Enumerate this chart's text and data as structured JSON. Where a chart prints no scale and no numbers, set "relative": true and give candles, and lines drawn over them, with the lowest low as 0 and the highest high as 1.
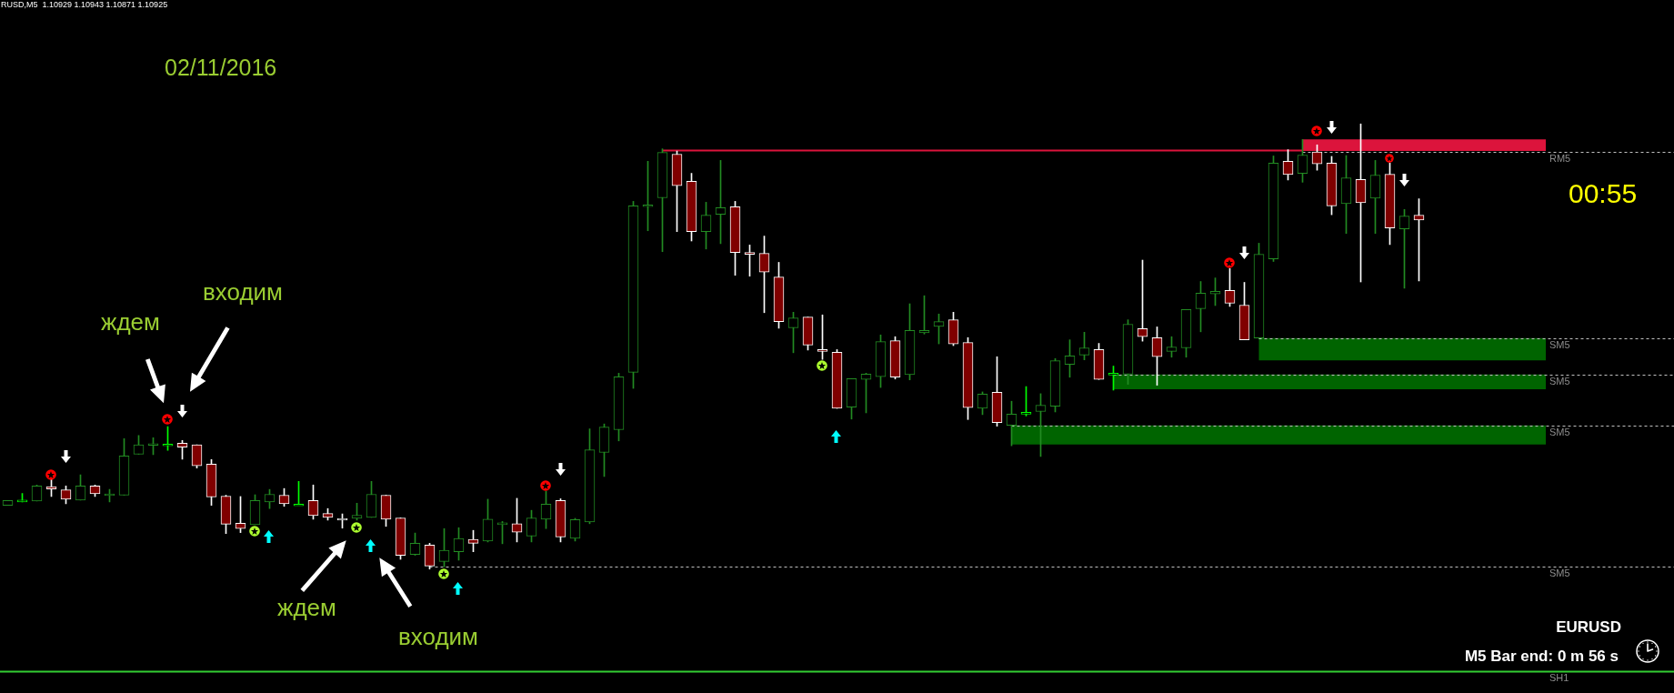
{
  "chart_data": {
    "type": "candlestick",
    "title": "RUSD,M5  1.10929 1.10943 1.10871 1.10925",
    "relative": true,
    "tick_labels": false,
    "categories": [
      null,
      null,
      null,
      null,
      null,
      null,
      null,
      null,
      null,
      null,
      null,
      null,
      null,
      null,
      null,
      null,
      null,
      null,
      null,
      null,
      null,
      null,
      null,
      null,
      null,
      null,
      null,
      null,
      null,
      null,
      null,
      null,
      null,
      null,
      null,
      null,
      null,
      null,
      null,
      null,
      null,
      null,
      null,
      null,
      null,
      null,
      null,
      null,
      null,
      null,
      null,
      null,
      null,
      null,
      null,
      null,
      null,
      null,
      null,
      null,
      null,
      null,
      null,
      null,
      null,
      null,
      null,
      null,
      null,
      null,
      null,
      null,
      null,
      null,
      null,
      null,
      null,
      null,
      null,
      null,
      null,
      null,
      null,
      null,
      null,
      null,
      null,
      null,
      null,
      null,
      null,
      null,
      null,
      null,
      null,
      null,
      null,
      null
    ],
    "ohlc": [
      [
        0.143,
        0.154,
        0.143,
        0.154
      ],
      [
        0.155,
        0.17,
        0.151,
        0.155
      ],
      [
        0.153,
        0.189,
        0.153,
        0.187
      ],
      [
        0.185,
        0.202,
        0.163,
        0.18
      ],
      [
        0.178,
        0.187,
        0.147,
        0.157
      ],
      [
        0.155,
        0.212,
        0.155,
        0.187
      ],
      [
        0.187,
        0.189,
        0.163,
        0.169
      ],
      [
        0.169,
        0.179,
        0.151,
        0.169
      ],
      [
        0.166,
        0.293,
        0.166,
        0.254
      ],
      [
        0.258,
        0.3,
        0.258,
        0.279
      ],
      [
        0.282,
        0.295,
        0.257,
        0.282
      ],
      [
        0.281,
        0.32,
        0.267,
        0.281
      ],
      [
        0.283,
        0.289,
        0.247,
        0.274
      ],
      [
        0.279,
        0.279,
        0.227,
        0.232
      ],
      [
        0.236,
        0.246,
        0.143,
        0.162
      ],
      [
        0.164,
        0.166,
        0.08,
        0.101
      ],
      [
        0.103,
        0.163,
        0.082,
        0.091
      ],
      [
        0.1,
        0.167,
        0.1,
        0.154
      ],
      [
        0.151,
        0.179,
        0.136,
        0.168
      ],
      [
        0.166,
        0.181,
        0.141,
        0.147
      ],
      [
        0.146,
        0.197,
        0.146,
        0.146
      ],
      [
        0.154,
        0.189,
        0.112,
        0.12
      ],
      [
        0.125,
        0.136,
        0.11,
        0.116
      ],
      [
        0.114,
        0.124,
        0.092,
        0.114
      ],
      [
        0.114,
        0.148,
        0.11,
        0.121
      ],
      [
        0.116,
        0.197,
        0.116,
        0.168
      ],
      [
        0.166,
        0.166,
        0.096,
        0.112
      ],
      [
        0.115,
        0.115,
        0.022,
        0.031
      ],
      [
        0.033,
        0.081,
        0.031,
        0.058
      ],
      [
        0.054,
        0.058,
        0,
        0.007
      ],
      [
        0.017,
        0.091,
        0.005,
        0.042
      ],
      [
        0.039,
        0.093,
        0.02,
        0.069
      ],
      [
        0.067,
        0.087,
        0.039,
        0.058
      ],
      [
        0.063,
        0.157,
        0.061,
        0.112
      ],
      [
        0.104,
        0.107,
        0.057,
        0.104
      ],
      [
        0.102,
        0.159,
        0.061,
        0.083
      ],
      [
        0.074,
        0.132,
        0.061,
        0.115
      ],
      [
        0.112,
        0.175,
        0.091,
        0.146
      ],
      [
        0.154,
        0.158,
        0.061,
        0.072
      ],
      [
        0.069,
        0.114,
        0.063,
        0.111
      ],
      [
        0.106,
        0.315,
        0.102,
        0.268
      ],
      [
        0.262,
        0.326,
        0.208,
        0.319
      ],
      [
        0.313,
        0.44,
        0.288,
        0.432
      ],
      [
        0.442,
        0.826,
        0.406,
        0.816
      ],
      [
        0.814,
        0.916,
        0.76,
        0.818
      ],
      [
        0.834,
        0.944,
        0.713,
        0.936
      ],
      [
        0.932,
        0.939,
        0.758,
        0.861
      ],
      [
        0.871,
        0.889,
        0.737,
        0.758
      ],
      [
        0.758,
        0.824,
        0.719,
        0.795
      ],
      [
        0.797,
        0.918,
        0.731,
        0.812
      ],
      [
        0.814,
        0.826,
        0.66,
        0.711
      ],
      [
        0.711,
        0.728,
        0.658,
        0.707
      ],
      [
        0.709,
        0.748,
        0.576,
        0.667
      ],
      [
        0.656,
        0.689,
        0.541,
        0.556
      ],
      [
        0.542,
        0.577,
        0.486,
        0.564
      ],
      [
        0.566,
        0.566,
        0.492,
        0.503
      ],
      [
        0.493,
        0.571,
        0.471,
        0.489
      ],
      [
        0.487,
        0.493,
        0.361,
        0.361
      ],
      [
        0.364,
        0.428,
        0.337,
        0.428
      ],
      [
        0.426,
        0.44,
        0.351,
        0.438
      ],
      [
        0.432,
        0.526,
        0.408,
        0.511
      ],
      [
        0.513,
        0.522,
        0.427,
        0.431
      ],
      [
        0.437,
        0.596,
        0.425,
        0.536
      ],
      [
        0.531,
        0.614,
        0.528,
        0.536
      ],
      [
        0.545,
        0.573,
        0.506,
        0.556
      ],
      [
        0.56,
        0.577,
        0.502,
        0.506
      ],
      [
        0.509,
        0.52,
        0.336,
        0.363
      ],
      [
        0.361,
        0.398,
        0.347,
        0.393
      ],
      [
        0.397,
        0.477,
        0.321,
        0.329
      ],
      [
        0.323,
        0.377,
        0.277,
        0.348
      ],
      [
        0.352,
        0.41,
        0.344,
        0.352
      ],
      [
        0.354,
        0.394,
        0.253,
        0.368
      ],
      [
        0.366,
        0.473,
        0.353,
        0.468
      ],
      [
        0.46,
        0.515,
        0.431,
        0.479
      ],
      [
        0.481,
        0.532,
        0.47,
        0.497
      ],
      [
        0.493,
        0.507,
        0.426,
        0.426
      ],
      [
        0.44,
        0.456,
        0.402,
        0.44
      ],
      [
        0.438,
        0.56,
        0.415,
        0.55
      ],
      [
        0.54,
        0.694,
        0.512,
        0.522
      ],
      [
        0.52,
        0.544,
        0.413,
        0.477
      ],
      [
        0.489,
        0.522,
        0.476,
        0.499
      ],
      [
        0.497,
        0.583,
        0.476,
        0.583
      ],
      [
        0.585,
        0.646,
        0.533,
        0.62
      ],
      [
        0.618,
        0.654,
        0.592,
        0.624
      ],
      [
        0.626,
        0.675,
        0.59,
        0.597
      ],
      [
        0.593,
        0.644,
        0.515,
        0.515
      ],
      [
        0.519,
        0.732,
        0.519,
        0.707
      ],
      [
        0.697,
        0.928,
        0.691,
        0.912
      ],
      [
        0.916,
        0.942,
        0.874,
        0.886
      ],
      [
        0.889,
        0.965,
        0.869,
        0.93
      ],
      [
        0.937,
        0.953,
        0.896,
        0.91
      ],
      [
        0.912,
        0.927,
        0.796,
        0.816
      ],
      [
        0.821,
        0.929,
        0.754,
        0.879
      ],
      [
        0.875,
        1,
        0.645,
        0.823
      ],
      [
        0.833,
        0.918,
        0.754,
        0.885
      ],
      [
        0.887,
        0.912,
        0.729,
        0.766
      ],
      [
        0.764,
        0.808,
        0.631,
        0.793
      ],
      [
        0.795,
        0.832,
        0.647,
        0.784
      ]
    ],
    "colors": [
      "#228b22",
      "#00ff00",
      "#228b22",
      "#ffffff",
      "#ffffff",
      "#228b22",
      "#ffffff",
      "#228b22",
      "#228b22",
      "#228b22",
      "#228b22",
      "#00ff00",
      "#ffffff",
      "#ffffff",
      "#ffffff",
      "#ffffff",
      "#ffffff",
      "#228b22",
      "#228b22",
      "#ffffff",
      "#00ff00",
      "#ffffff",
      "#ffffff",
      "#ffffff",
      "#228b22",
      "#228b22",
      "#ffffff",
      "#ffffff",
      "#228b22",
      "#ffffff",
      "#228b22",
      "#228b22",
      "#ffffff",
      "#228b22",
      "#228b22",
      "#ffffff",
      "#228b22",
      "#228b22",
      "#ffffff",
      "#228b22",
      "#228b22",
      "#228b22",
      "#228b22",
      "#228b22",
      "#228b22",
      "#228b22",
      "#ffffff",
      "#ffffff",
      "#228b22",
      "#228b22",
      "#ffffff",
      "#ffffff",
      "#ffffff",
      "#ffffff",
      "#228b22",
      "#ffffff",
      "#ffffff",
      "#ffffff",
      "#228b22",
      "#228b22",
      "#228b22",
      "#ffffff",
      "#228b22",
      "#228b22",
      "#228b22",
      "#ffffff",
      "#ffffff",
      "#228b22",
      "#ffffff",
      "#228b22",
      "#00ff00",
      "#228b22",
      "#228b22",
      "#228b22",
      "#228b22",
      "#ffffff",
      "#00ff00",
      "#228b22",
      "#ffffff",
      "#ffffff",
      "#228b22",
      "#228b22",
      "#228b22",
      "#228b22",
      "#ffffff",
      "#ffffff",
      "#228b22",
      "#228b22",
      "#ffffff",
      "#228b22",
      "#ffffff",
      "#ffffff",
      "#228b22",
      "#ffffff",
      "#228b22",
      "#ffffff",
      "#228b22",
      "#ffffff"
    ],
    "bands": [
      {
        "axis": "y",
        "from": 0.939,
        "to": 0.965,
        "color": "#dc143c"
      },
      {
        "axis": "y",
        "from": 0.469,
        "to": 0.519,
        "color": "#006400"
      },
      {
        "axis": "y",
        "from": 0.404,
        "to": 0.437,
        "color": "#006400"
      },
      {
        "axis": "y",
        "from": 0.28,
        "to": 0.323,
        "color": "#006400"
      }
    ],
    "ref_lines": [
      {
        "axis": "y",
        "value": 0.942,
        "color": "#dc143c",
        "line_style": "solid"
      },
      {
        "axis": "y",
        "value": 0.938,
        "label": "RM5",
        "color": "#c0c0c0",
        "line_style": "dashed"
      },
      {
        "axis": "y",
        "value": 0.519,
        "label": "SM5",
        "color": "#c0c0c0",
        "line_style": "dashed"
      },
      {
        "axis": "y",
        "value": 0.437,
        "label": "SM5",
        "color": "#c0c0c0",
        "line_style": "dashed"
      },
      {
        "axis": "y",
        "value": 0.323,
        "label": "SM5",
        "color": "#c0c0c0",
        "line_style": "dashed"
      },
      {
        "axis": "y",
        "value": 0.006,
        "label": "SM5",
        "color": "#c0c0c0",
        "line_style": "dashed"
      },
      {
        "axis": "y",
        "value": -0.229,
        "label": "SH1",
        "color": "#32cd32",
        "line_style": "solid"
      }
    ],
    "annotations": [
      "02/11/2016",
      "ждем",
      "входим",
      "ждем",
      "входим",
      "00:55",
      "EURUSD",
      "M5 Bar end: 0 m 56 s"
    ]
  }
}
